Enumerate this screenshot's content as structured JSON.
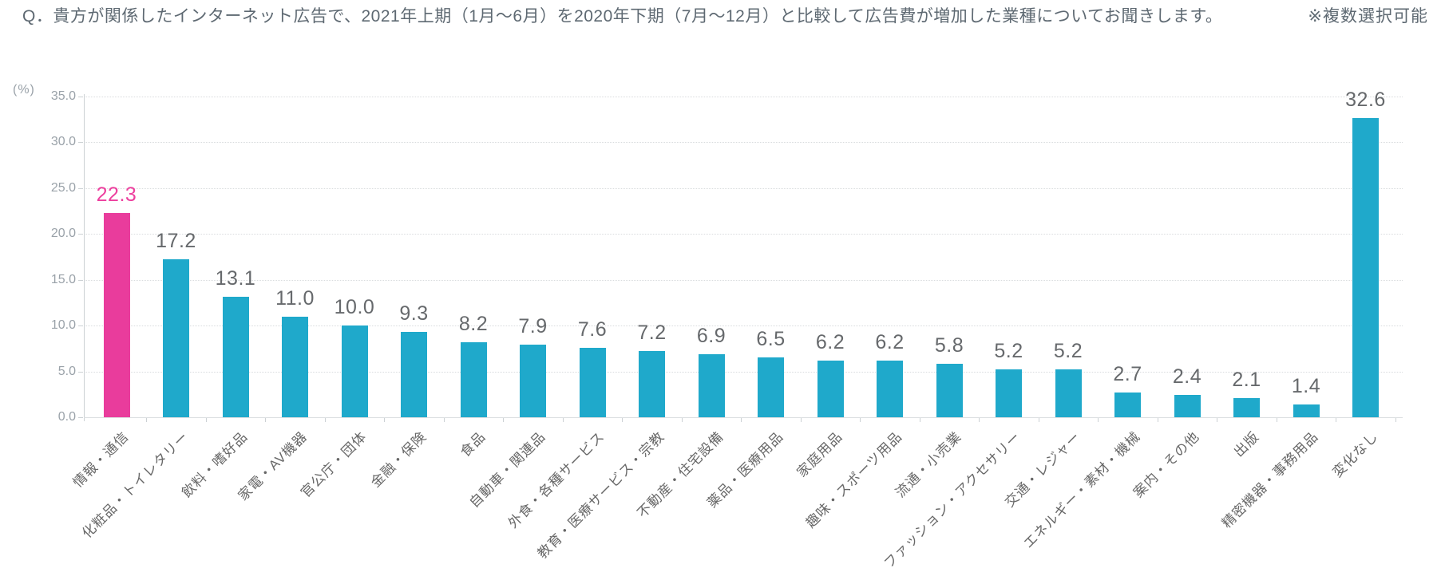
{
  "header": {
    "question": "Q．貴方が関係したインターネット広告で、2021年上期（1月～6月）を2020年下期（7月～12月）と比較して広告費が増加した業種についてお聞きします。",
    "note": "※複数選択可能"
  },
  "chart_data": {
    "type": "bar",
    "title": "2021年上期（1月～6月）を2020年下期（7月～12月）と比較して広告費が増加した業種",
    "unit_label": "(%)",
    "xlabel": "",
    "ylabel": "(%)",
    "ylim": [
      0,
      35
    ],
    "ytick_step": 5,
    "grid": "horizontal-dotted",
    "legend": "none",
    "categories": [
      "情報・通信",
      "化粧品・トイレタリー",
      "飲料・嗜好品",
      "家電・AV機器",
      "官公庁・団体",
      "金融・保険",
      "食品",
      "自動車・関連品",
      "外食・各種サービス",
      "教育・医療サービス・宗教",
      "不動産・住宅設備",
      "薬品・医療用品",
      "家庭用品",
      "趣味・スポーツ用品",
      "流通・小売業",
      "ファッション・アクセサリー",
      "交通・レジャー",
      "エネルギー・素材・機械",
      "案内・その他",
      "出版",
      "精密機器・事務用品",
      "変化なし"
    ],
    "values": [
      22.3,
      17.2,
      13.1,
      11.0,
      10.0,
      9.3,
      8.2,
      7.9,
      7.6,
      7.2,
      6.9,
      6.5,
      6.2,
      6.2,
      5.8,
      5.2,
      5.2,
      2.7,
      2.4,
      2.1,
      1.4,
      32.6
    ],
    "highlight_index": 0,
    "colors": {
      "bar": "#1FA9CB",
      "highlight_bar": "#E93C9C",
      "highlight_value_label": "#ED3F9E",
      "value_label": "#66696c",
      "axis_label": "#9aa2a9",
      "category_label": "#686868",
      "gridline": "#d9dcde",
      "title_text": "#5e6972"
    }
  }
}
